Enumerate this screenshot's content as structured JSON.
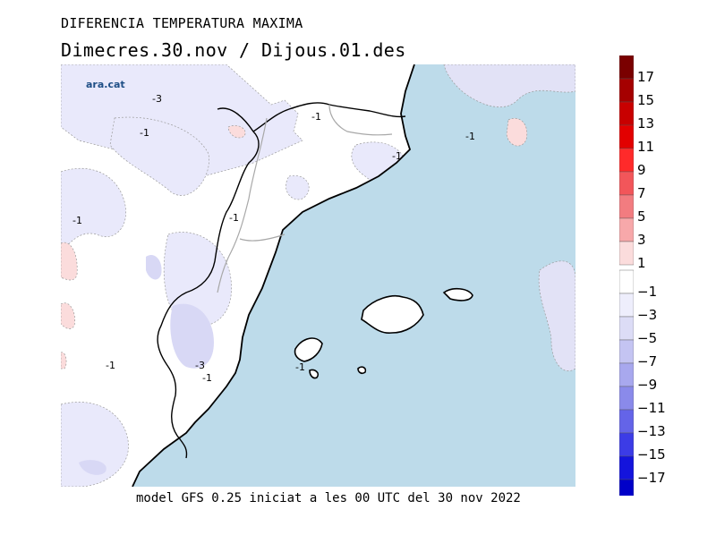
{
  "header": {
    "title": "DIFERENCIA TEMPERATURA MAXIMA",
    "subtitle": "Dimecres.30.nov / Dijous.01.des"
  },
  "footer": {
    "text": "model GFS 0.25 iniciat a les 00 UTC del 30 nov 2022"
  },
  "branding": {
    "logo_text": "ara.cat"
  },
  "map": {
    "sea_color": "#bddbea",
    "land_color": "#ffffff",
    "contour_labels": [
      "-3",
      "-1",
      "-1",
      "-1",
      "-1",
      "-1",
      "-1",
      "-1",
      "-3",
      "-1",
      "-1"
    ]
  },
  "legend": {
    "bins": [
      {
        "label": "17",
        "color": "#7a0000"
      },
      {
        "label": "15",
        "color": "#a50000"
      },
      {
        "label": "13",
        "color": "#c80000"
      },
      {
        "label": "11",
        "color": "#e20000"
      },
      {
        "label": "9",
        "color": "#ff2a2a"
      },
      {
        "label": "7",
        "color": "#f2565a"
      },
      {
        "label": "5",
        "color": "#f27c80"
      },
      {
        "label": "3",
        "color": "#f7a8aa"
      },
      {
        "label": "1",
        "color": "#fbdcdc"
      },
      {
        "label": "-1",
        "color": "#ffffff"
      },
      {
        "label": "-3",
        "color": "#eeeefc"
      },
      {
        "label": "-5",
        "color": "#dcdcf6"
      },
      {
        "label": "-7",
        "color": "#c4c4f2"
      },
      {
        "label": "-9",
        "color": "#a8a8ee"
      },
      {
        "label": "-11",
        "color": "#8a8aea"
      },
      {
        "label": "-13",
        "color": "#6464e8"
      },
      {
        "label": "-15",
        "color": "#3c3ce6"
      },
      {
        "label": "-17",
        "color": "#1414dc"
      },
      {
        "label": "",
        "color": "#0000c8"
      }
    ]
  }
}
